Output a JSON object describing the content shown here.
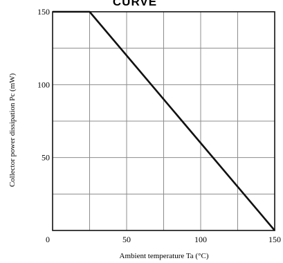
{
  "chart_data": {
    "type": "line",
    "title": "CURVE",
    "xlabel": "Ambient temperature Ta (°C)",
    "ylabel": "Collector power dissipation Pc (mW)",
    "xlim": [
      0,
      150
    ],
    "ylim": [
      0,
      150
    ],
    "grid": true,
    "x_ticks": [
      0,
      50,
      100,
      150
    ],
    "y_ticks": [
      0,
      50,
      100,
      150
    ],
    "x_tick_labels": [
      "0",
      "50",
      "100",
      "150"
    ],
    "y_tick_labels": [
      "",
      "50",
      "100",
      "150"
    ],
    "grid_step_x": 25,
    "grid_step_y": 25,
    "series": [
      {
        "x": [
          0,
          25,
          150
        ],
        "y": [
          150,
          150,
          0
        ]
      }
    ],
    "line_color": "#111111",
    "grid_color": "#8c8c8c"
  }
}
